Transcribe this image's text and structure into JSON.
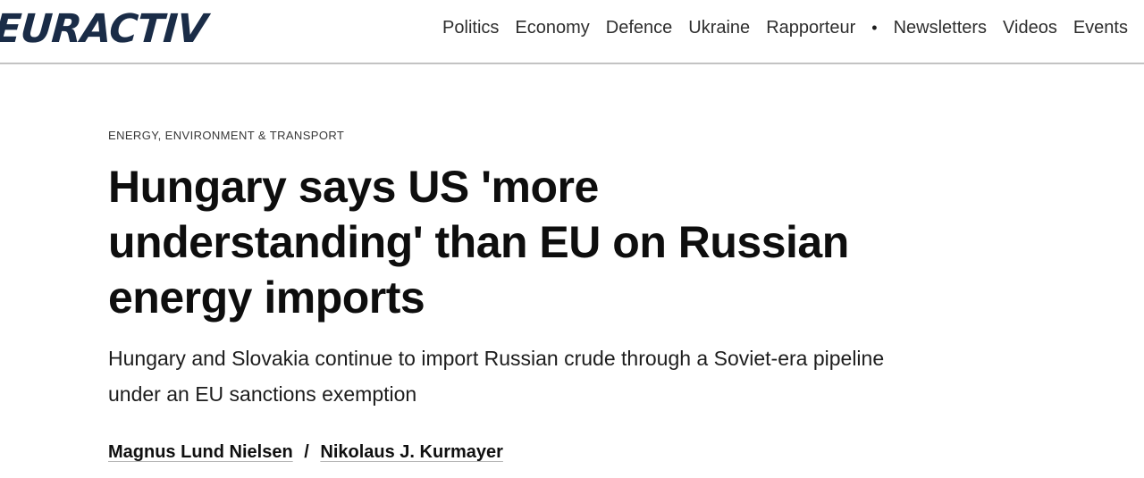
{
  "brand": {
    "logo_text": "EURACTIV",
    "logo_color": "#1a2c47"
  },
  "nav": {
    "items": [
      "Politics",
      "Economy",
      "Defence",
      "Ukraine",
      "Rapporteur",
      "•",
      "Newsletters",
      "Videos",
      "Events"
    ]
  },
  "article": {
    "category": "ENERGY, ENVIRONMENT & TRANSPORT",
    "headline": "Hungary says US 'more understanding' than EU on Russian energy imports",
    "headline_lines": [
      "Hungary says US 'more",
      "understanding' than EU on Russian",
      "energy imports"
    ],
    "subtitle": "Hungary and Slovakia continue to import Russian crude through a Soviet-era pipeline under an EU sanctions exemption",
    "subtitle_lines": [
      "Hungary and Slovakia continue to import Russian crude through a Soviet-era pipeline",
      "under an EU sanctions exemption"
    ],
    "authors": [
      "Magnus Lund Nielsen",
      "Nikolaus J. Kurmayer"
    ],
    "author_separator": "/"
  },
  "colors": {
    "logo_navy": "#1a2c47",
    "nav_text": "#2e2e2e",
    "headline_text": "#0e0e0e",
    "divider": "#c3c3c3",
    "author_underline": "#b5b5b5"
  }
}
